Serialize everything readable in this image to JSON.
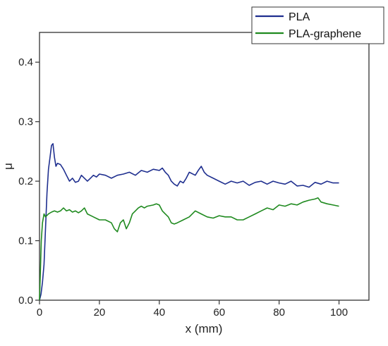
{
  "chart_data": {
    "type": "line",
    "xlabel": "x (mm)",
    "ylabel": "μ",
    "xlim": [
      0,
      110
    ],
    "ylim": [
      0,
      0.45
    ],
    "x_ticks": [
      0,
      20,
      40,
      60,
      80,
      100
    ],
    "x_tick_labels": [
      "0",
      "20",
      "40",
      "60",
      "80",
      "100"
    ],
    "y_ticks": [
      0.0,
      0.1,
      0.2,
      0.3,
      0.4
    ],
    "y_tick_labels": [
      "0.0",
      "0.1",
      "0.2",
      "0.3",
      "0.4"
    ],
    "grid": false,
    "legend_position": "top-right",
    "series": [
      {
        "name": "PLA",
        "color": "#1f2f8f",
        "x": [
          0,
          0.5,
          1,
          1.5,
          2,
          2.5,
          3,
          3.5,
          4,
          4.5,
          5,
          5.5,
          6,
          7,
          8,
          9,
          10,
          11,
          12,
          13,
          14,
          15,
          16,
          17,
          18,
          19,
          20,
          22,
          24,
          26,
          28,
          30,
          32,
          34,
          36,
          38,
          40,
          41,
          42,
          43,
          44,
          45,
          46,
          47,
          48,
          49,
          50,
          52,
          53,
          54,
          55,
          56,
          58,
          60,
          62,
          64,
          66,
          68,
          70,
          72,
          74,
          76,
          78,
          80,
          82,
          84,
          86,
          88,
          90,
          92,
          94,
          96,
          98,
          100
        ],
        "values": [
          0.0,
          0.01,
          0.03,
          0.06,
          0.12,
          0.18,
          0.22,
          0.24,
          0.26,
          0.263,
          0.24,
          0.225,
          0.23,
          0.228,
          0.22,
          0.21,
          0.2,
          0.205,
          0.198,
          0.2,
          0.21,
          0.205,
          0.2,
          0.205,
          0.21,
          0.207,
          0.212,
          0.21,
          0.205,
          0.21,
          0.212,
          0.215,
          0.21,
          0.218,
          0.215,
          0.22,
          0.218,
          0.222,
          0.215,
          0.21,
          0.2,
          0.195,
          0.192,
          0.2,
          0.197,
          0.205,
          0.215,
          0.21,
          0.218,
          0.225,
          0.215,
          0.21,
          0.205,
          0.2,
          0.195,
          0.2,
          0.197,
          0.2,
          0.193,
          0.198,
          0.2,
          0.195,
          0.2,
          0.197,
          0.195,
          0.2,
          0.192,
          0.193,
          0.19,
          0.198,
          0.195,
          0.2,
          0.197,
          0.197
        ]
      },
      {
        "name": "PLA-graphene",
        "color": "#1f8a1f",
        "x": [
          0,
          0.3,
          0.6,
          1,
          1.5,
          2,
          3,
          4,
          5,
          6,
          7,
          8,
          9,
          10,
          11,
          12,
          13,
          14,
          15,
          16,
          18,
          20,
          22,
          24,
          25,
          26,
          27,
          28,
          29,
          30,
          31,
          32,
          33,
          34,
          35,
          36,
          38,
          39,
          40,
          41,
          42,
          43,
          44,
          45,
          46,
          48,
          50,
          52,
          54,
          56,
          58,
          60,
          62,
          64,
          66,
          68,
          70,
          72,
          74,
          76,
          78,
          80,
          82,
          84,
          86,
          88,
          90,
          92,
          93,
          94,
          96,
          98,
          100
        ],
        "values": [
          0.0,
          0.05,
          0.1,
          0.13,
          0.145,
          0.14,
          0.145,
          0.148,
          0.15,
          0.148,
          0.15,
          0.155,
          0.15,
          0.152,
          0.148,
          0.15,
          0.147,
          0.15,
          0.155,
          0.145,
          0.14,
          0.135,
          0.135,
          0.13,
          0.12,
          0.115,
          0.13,
          0.135,
          0.12,
          0.13,
          0.145,
          0.15,
          0.155,
          0.158,
          0.155,
          0.158,
          0.16,
          0.162,
          0.16,
          0.15,
          0.145,
          0.14,
          0.13,
          0.128,
          0.13,
          0.135,
          0.14,
          0.15,
          0.145,
          0.14,
          0.138,
          0.142,
          0.14,
          0.14,
          0.135,
          0.135,
          0.14,
          0.145,
          0.15,
          0.155,
          0.152,
          0.16,
          0.158,
          0.162,
          0.16,
          0.165,
          0.168,
          0.17,
          0.172,
          0.165,
          0.162,
          0.16,
          0.158
        ]
      }
    ]
  }
}
